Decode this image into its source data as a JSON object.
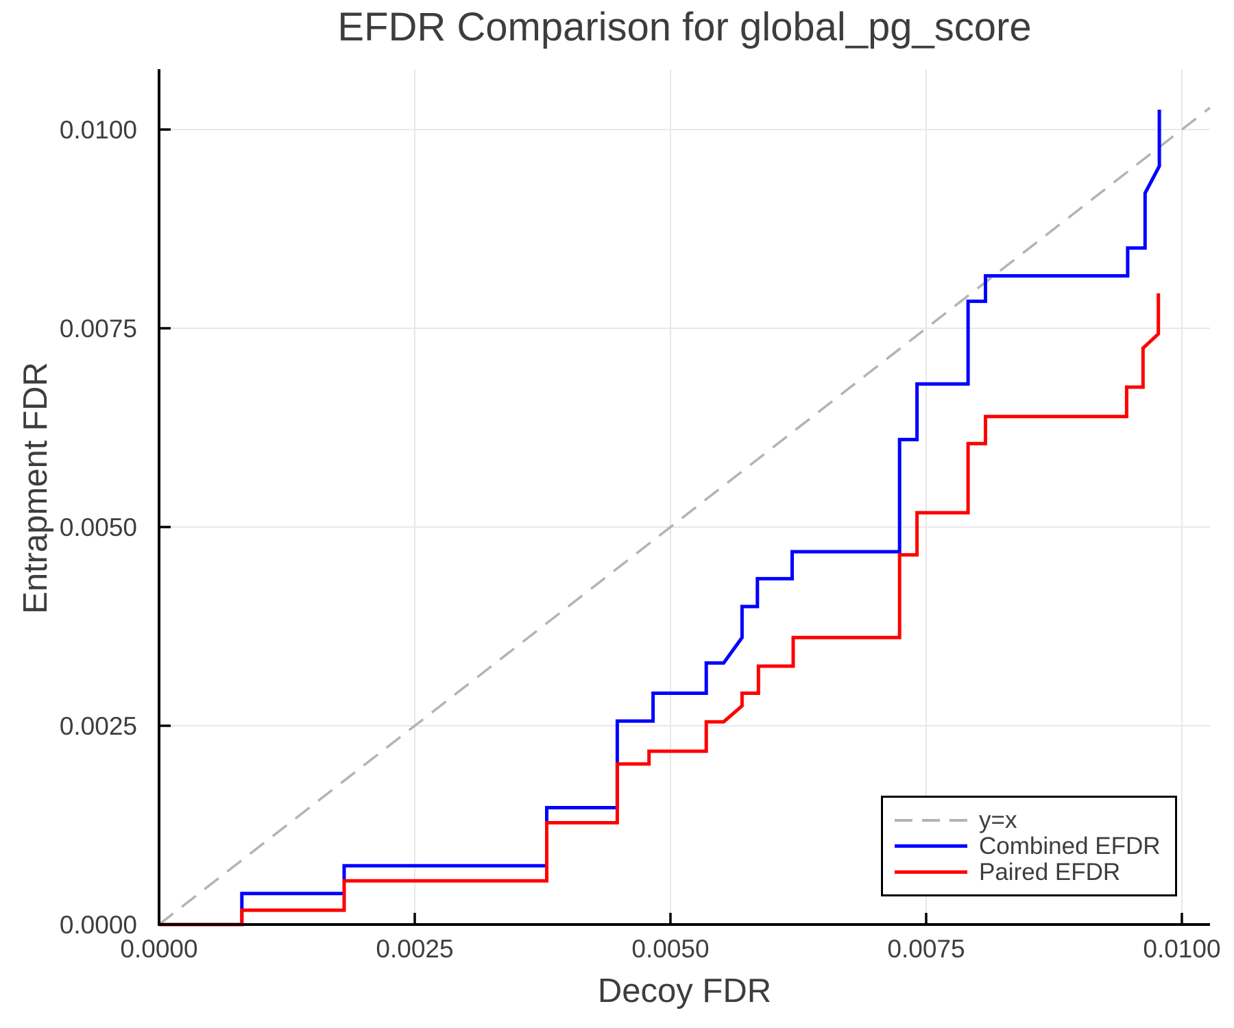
{
  "page": {
    "background": "#ffffff"
  },
  "chart_data": {
    "type": "line",
    "subtype": "step-curves",
    "title": "EFDR Comparison for global_pg_score",
    "xlabel": "Decoy FDR",
    "ylabel": "Entrapment FDR",
    "xlim": [
      0,
      0.010275
    ],
    "ylim": [
      0,
      0.010759
    ],
    "grid": true,
    "x_ticks": {
      "values": [
        0,
        0.0025,
        0.005,
        0.0075,
        0.01
      ],
      "labels": [
        "0.0000",
        "0.0025",
        "0.0050",
        "0.0075",
        "0.0100"
      ]
    },
    "y_ticks": {
      "values": [
        0,
        0.0025,
        0.005,
        0.0075,
        0.01
      ],
      "labels": [
        "0.0000",
        "0.0025",
        "0.0050",
        "0.0075",
        "0.0100"
      ]
    },
    "reference_line": {
      "label": "y=x",
      "color": "#b3b3b3",
      "style": "dashed",
      "from": [
        0,
        0
      ],
      "to": [
        0.010275,
        0.010275
      ]
    },
    "series": [
      {
        "name": "Combined EFDR",
        "id": "combined-efdr-line",
        "color": "#0000ff",
        "points": [
          [
            0,
            0
          ],
          [
            0.00081,
            0
          ],
          [
            0.00081,
            0.00039
          ],
          [
            0.00181,
            0.00039
          ],
          [
            0.00181,
            0.00074
          ],
          [
            0.00379,
            0.00074
          ],
          [
            0.00379,
            0.00147
          ],
          [
            0.00448,
            0.00147
          ],
          [
            0.00448,
            0.00256
          ],
          [
            0.00483,
            0.00256
          ],
          [
            0.00483,
            0.00291
          ],
          [
            0.00535,
            0.00291
          ],
          [
            0.00535,
            0.00329
          ],
          [
            0.00552,
            0.00329
          ],
          [
            0.0057,
            0.00361
          ],
          [
            0.0057,
            0.004
          ],
          [
            0.00585,
            0.004
          ],
          [
            0.00585,
            0.00435
          ],
          [
            0.00619,
            0.00435
          ],
          [
            0.00619,
            0.00469
          ],
          [
            0.00724,
            0.00469
          ],
          [
            0.00724,
            0.0061
          ],
          [
            0.00741,
            0.0061
          ],
          [
            0.00741,
            0.0068
          ],
          [
            0.00791,
            0.0068
          ],
          [
            0.00791,
            0.00784
          ],
          [
            0.00808,
            0.00784
          ],
          [
            0.00808,
            0.00816
          ],
          [
            0.00947,
            0.00816
          ],
          [
            0.00947,
            0.00851
          ],
          [
            0.00964,
            0.00851
          ],
          [
            0.00964,
            0.0092
          ],
          [
            0.00978,
            0.00954
          ],
          [
            0.00978,
            0.01025
          ]
        ]
      },
      {
        "name": "Paired EFDR",
        "id": "paired-efdr-line",
        "color": "#ff0000",
        "points": [
          [
            0,
            0
          ],
          [
            0.00081,
            0
          ],
          [
            0.00081,
            0.00018
          ],
          [
            0.00181,
            0.00018
          ],
          [
            0.00181,
            0.00055
          ],
          [
            0.00379,
            0.00055
          ],
          [
            0.00379,
            0.00128
          ],
          [
            0.00448,
            0.00128
          ],
          [
            0.00448,
            0.00202
          ],
          [
            0.00479,
            0.00202
          ],
          [
            0.00479,
            0.00218
          ],
          [
            0.00535,
            0.00218
          ],
          [
            0.00535,
            0.00255
          ],
          [
            0.00552,
            0.00255
          ],
          [
            0.0057,
            0.00275
          ],
          [
            0.0057,
            0.00291
          ],
          [
            0.00586,
            0.00291
          ],
          [
            0.00586,
            0.00325
          ],
          [
            0.0062,
            0.00325
          ],
          [
            0.0062,
            0.00361
          ],
          [
            0.00724,
            0.00361
          ],
          [
            0.00724,
            0.00465
          ],
          [
            0.00741,
            0.00465
          ],
          [
            0.00741,
            0.00518
          ],
          [
            0.00791,
            0.00518
          ],
          [
            0.00791,
            0.00605
          ],
          [
            0.00808,
            0.00605
          ],
          [
            0.00808,
            0.00639
          ],
          [
            0.00946,
            0.00639
          ],
          [
            0.00946,
            0.00676
          ],
          [
            0.00962,
            0.00676
          ],
          [
            0.00962,
            0.00725
          ],
          [
            0.00977,
            0.00743
          ],
          [
            0.00977,
            0.00794
          ]
        ]
      }
    ],
    "legend": {
      "position": "lower right",
      "entries": [
        "y=x",
        "Combined EFDR",
        "Paired EFDR"
      ]
    },
    "colors": {
      "grid": "#e8e8e8",
      "spine": "#000000",
      "text": "#3d3d3d"
    }
  }
}
